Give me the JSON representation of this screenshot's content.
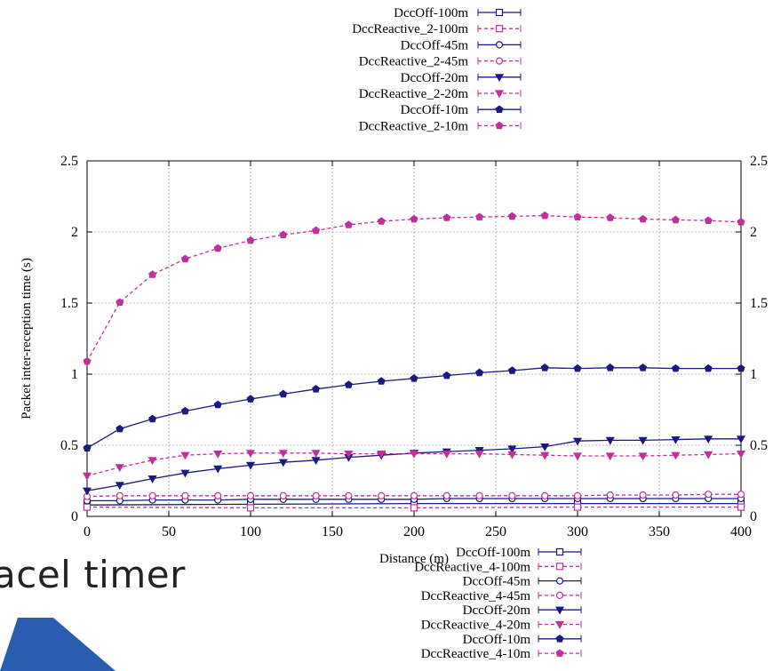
{
  "slide": {
    "partial_title": "acel timer"
  },
  "colors": {
    "dccoff": "#1a1a80",
    "dccreactive": "#c0309a",
    "logo": "#2a5db0"
  },
  "legend_top": [
    "DccOff-100m",
    "DccReactive_2-100m",
    "DccOff-45m",
    "DccReactive_2-45m",
    "DccOff-20m",
    "DccReactive_2-20m",
    "DccOff-10m",
    "DccReactive_2-10m"
  ],
  "legend_bottom": [
    "DccOff-100m",
    "DccReactive_4-100m",
    "DccOff-45m",
    "DccReactive_4-45m",
    "DccOff-20m",
    "DccReactive_4-20m",
    "DccOff-10m",
    "DccReactive_4-10m"
  ],
  "chart_data": {
    "type": "line",
    "title": "",
    "xlabel": "Distance (m)",
    "ylabel": "Packet inter-reception time (s)",
    "xlim": [
      0,
      400
    ],
    "ylim": [
      0,
      2.5
    ],
    "x_ticks": [
      "0",
      "50",
      "100",
      "150",
      "200",
      "250",
      "300",
      "350",
      "400"
    ],
    "y_ticks": [
      "0",
      "0.5",
      "1",
      "1.5",
      "2",
      "2.5"
    ],
    "grid": true,
    "legend_placement": "top",
    "series": [
      {
        "name": "DccOff-100m",
        "color": "#1a1a80",
        "dash": false,
        "marker": "square",
        "x": [
          0,
          100,
          200,
          300,
          400
        ],
        "y": [
          0.08,
          0.085,
          0.09,
          0.09,
          0.09
        ]
      },
      {
        "name": "DccReactive_2-100m",
        "color": "#c0309a",
        "dash": true,
        "marker": "square",
        "x": [
          0,
          100,
          200,
          300,
          400
        ],
        "y": [
          0.065,
          0.06,
          0.06,
          0.065,
          0.065
        ]
      },
      {
        "name": "DccOff-45m",
        "color": "#1a1a80",
        "dash": false,
        "marker": "circle",
        "x": [
          0,
          20,
          40,
          60,
          80,
          100,
          120,
          140,
          160,
          180,
          200,
          220,
          240,
          260,
          280,
          300,
          320,
          340,
          360,
          380,
          400
        ],
        "y": [
          0.11,
          0.11,
          0.115,
          0.115,
          0.115,
          0.12,
          0.12,
          0.12,
          0.12,
          0.12,
          0.12,
          0.125,
          0.125,
          0.125,
          0.125,
          0.125,
          0.125,
          0.125,
          0.125,
          0.125,
          0.125
        ]
      },
      {
        "name": "DccReactive_2-45m",
        "color": "#c0309a",
        "dash": true,
        "marker": "circle",
        "x": [
          0,
          20,
          40,
          60,
          80,
          100,
          120,
          140,
          160,
          180,
          200,
          220,
          240,
          260,
          280,
          300,
          320,
          340,
          360,
          380,
          400
        ],
        "y": [
          0.14,
          0.145,
          0.145,
          0.145,
          0.145,
          0.145,
          0.145,
          0.145,
          0.145,
          0.145,
          0.145,
          0.145,
          0.145,
          0.145,
          0.145,
          0.145,
          0.15,
          0.15,
          0.15,
          0.155,
          0.155
        ]
      },
      {
        "name": "DccOff-20m",
        "color": "#1a1a80",
        "dash": false,
        "marker": "triangle",
        "x": [
          0,
          20,
          40,
          60,
          80,
          100,
          120,
          140,
          160,
          180,
          200,
          220,
          240,
          260,
          280,
          300,
          320,
          340,
          360,
          380,
          400
        ],
        "y": [
          0.18,
          0.22,
          0.265,
          0.305,
          0.335,
          0.36,
          0.38,
          0.395,
          0.415,
          0.43,
          0.445,
          0.455,
          0.465,
          0.475,
          0.49,
          0.53,
          0.535,
          0.535,
          0.54,
          0.545,
          0.545
        ]
      },
      {
        "name": "DccReactive_2-20m",
        "color": "#c0309a",
        "dash": true,
        "marker": "triangle",
        "x": [
          0,
          20,
          40,
          60,
          80,
          100,
          120,
          140,
          160,
          180,
          200,
          220,
          240,
          260,
          280,
          300,
          320,
          340,
          360,
          380,
          400
        ],
        "y": [
          0.285,
          0.345,
          0.395,
          0.43,
          0.44,
          0.445,
          0.445,
          0.445,
          0.44,
          0.44,
          0.44,
          0.44,
          0.44,
          0.435,
          0.43,
          0.425,
          0.425,
          0.425,
          0.43,
          0.435,
          0.44
        ]
      },
      {
        "name": "DccOff-10m",
        "color": "#1a1a80",
        "dash": false,
        "marker": "pentagon",
        "x": [
          0,
          20,
          40,
          60,
          80,
          100,
          120,
          140,
          160,
          180,
          200,
          220,
          240,
          260,
          280,
          300,
          320,
          340,
          360,
          380,
          400
        ],
        "y": [
          0.48,
          0.615,
          0.685,
          0.74,
          0.785,
          0.825,
          0.86,
          0.895,
          0.925,
          0.95,
          0.97,
          0.99,
          1.01,
          1.025,
          1.045,
          1.04,
          1.045,
          1.045,
          1.04,
          1.04,
          1.04
        ]
      },
      {
        "name": "DccReactive_2-10m",
        "color": "#c0309a",
        "dash": true,
        "marker": "pentagon",
        "x": [
          0,
          20,
          40,
          60,
          80,
          100,
          120,
          140,
          160,
          180,
          200,
          220,
          240,
          260,
          280,
          300,
          320,
          340,
          360,
          380,
          400
        ],
        "y": [
          1.09,
          1.505,
          1.7,
          1.81,
          1.885,
          1.94,
          1.98,
          2.01,
          2.05,
          2.075,
          2.09,
          2.1,
          2.105,
          2.11,
          2.115,
          2.105,
          2.1,
          2.09,
          2.085,
          2.08,
          2.07
        ]
      }
    ]
  }
}
